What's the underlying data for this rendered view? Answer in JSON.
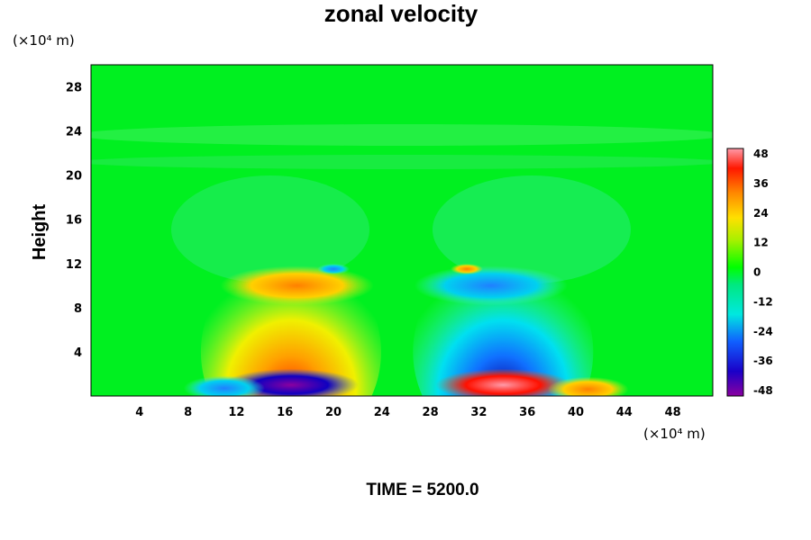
{
  "chart_data": {
    "type": "heatmap",
    "title": "zonal velocity",
    "xlabel": "",
    "ylabel": "Height",
    "x_unit": "(×10⁴ m)",
    "y_unit": "(×10⁴ m)",
    "xlim": [
      0,
      51.3
    ],
    "ylim": [
      0,
      30
    ],
    "x_ticks": [
      "4",
      "8",
      "12",
      "16",
      "20",
      "24",
      "28",
      "32",
      "36",
      "40",
      "44",
      "48"
    ],
    "y_ticks": [
      "4",
      "8",
      "12",
      "16",
      "20",
      "24",
      "28"
    ],
    "colorbar": {
      "ticks": [
        "48",
        "36",
        "24",
        "12",
        "0",
        "-12",
        "-24",
        "-36",
        "-48"
      ],
      "min": -48,
      "max": 48
    },
    "features": [
      {
        "x": 16.5,
        "y": 4.0,
        "value": 44
      },
      {
        "x": 17.0,
        "y": 10.0,
        "value": 26
      },
      {
        "x": 34.0,
        "y": 4.0,
        "value": -40
      },
      {
        "x": 33.0,
        "y": 10.0,
        "value": -20
      },
      {
        "x": 16.5,
        "y": 1.0,
        "value": -50
      },
      {
        "x": 34.0,
        "y": 1.0,
        "value": 50
      },
      {
        "x": 11.0,
        "y": 0.7,
        "value": -30
      },
      {
        "x": 41.0,
        "y": 0.6,
        "value": 30
      },
      {
        "x": 20.0,
        "y": 11.5,
        "value": -20
      },
      {
        "x": 31.0,
        "y": 11.5,
        "value": 28
      }
    ]
  },
  "time_label": "TIME = 5200.0"
}
